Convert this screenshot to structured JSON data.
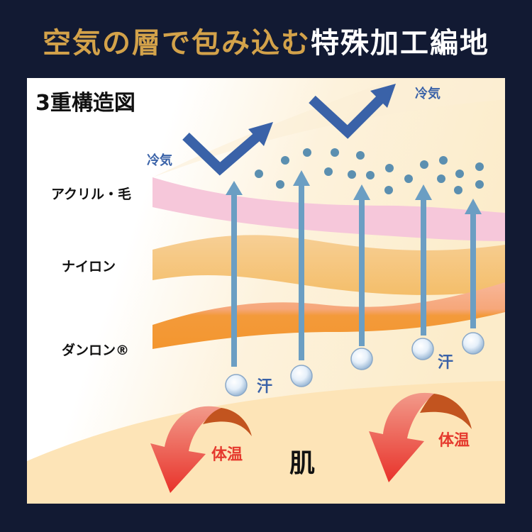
{
  "title": {
    "part1": "空気の層で包み込む",
    "part2": "特殊加工編地"
  },
  "diagram": {
    "heading": "3重構造図",
    "layers": [
      "アクリル・毛",
      "ナイロン",
      "ダンロン®"
    ],
    "cold_air_label": "冷気",
    "sweat_label": "汗",
    "body_heat_label": "体温",
    "skin_label": "肌"
  },
  "colors": {
    "gold": "#d3a24a",
    "background": "#121a33",
    "blue_text": "#3a62a8",
    "red_text": "#e53a2e"
  }
}
